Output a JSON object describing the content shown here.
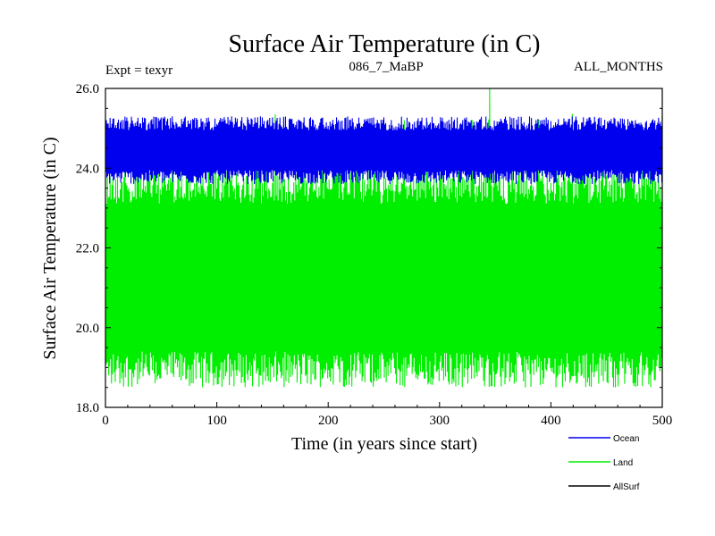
{
  "chart_data": {
    "type": "line",
    "title": "Surface Air Temperature (in C)",
    "subtitle_left": "Expt = texyr",
    "subtitle_center": "086_7_MaBP",
    "subtitle_right": "ALL_MONTHS",
    "xlabel": "Time (in years since start)",
    "ylabel": "Surface Air Temperature (in C)",
    "xlim": [
      0,
      500
    ],
    "ylim": [
      18.0,
      26.0
    ],
    "xticks": [
      0,
      100,
      200,
      300,
      400,
      500
    ],
    "xtick_labels": [
      "0",
      "100",
      "200",
      "300",
      "400",
      "500"
    ],
    "yticks": [
      18.0,
      20.0,
      22.0,
      24.0,
      26.0
    ],
    "ytick_labels": [
      "18.0",
      "20.0",
      "22.0",
      "24.0",
      "26.0"
    ],
    "grid": false,
    "legend_position": "bottom-right outside plot",
    "x": {
      "start": 0,
      "end": 500
    },
    "series": [
      {
        "name": "Land",
        "color": "#00ee00",
        "mean": 21.8,
        "min": 18.5,
        "max": 24.0,
        "max_spike": 26.0
      },
      {
        "name": "Ocean",
        "color": "#0000ee",
        "mean": 24.4,
        "min": 23.6,
        "max": 25.3
      },
      {
        "name": "AllSurf",
        "color": "#000000",
        "mean": 23.6,
        "min": 23.4,
        "max": 23.9
      }
    ]
  }
}
